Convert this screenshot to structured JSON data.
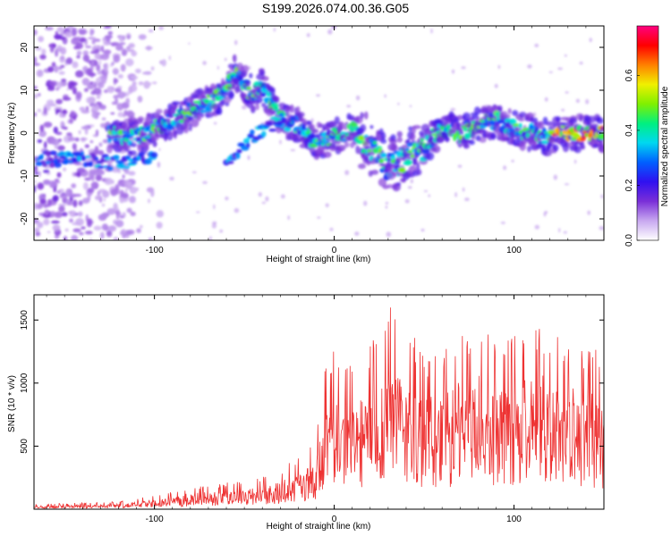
{
  "title": "S199.2026.074.00.36.G05",
  "chart_data": [
    {
      "type": "heatmap",
      "name": "spectrogram",
      "xlabel": "Height of straight line (km)",
      "ylabel": "Frequency (Hz)",
      "xlim": [
        -167,
        150
      ],
      "ylim": [
        -25,
        25
      ],
      "xticks": [
        -100,
        0,
        100
      ],
      "yticks": [
        -20,
        -10,
        0,
        10,
        20
      ],
      "colorbar": {
        "label": "Normalized spectral amplitude",
        "range": [
          0,
          0.78
        ],
        "ticks": [
          "0.0",
          "0.2",
          "0.4",
          "0.6"
        ],
        "tick_values": [
          0.0,
          0.2,
          0.4,
          0.6
        ],
        "colors": [
          "#ffffff",
          "#c8a8f0",
          "#7a2fd8",
          "#3010f0",
          "#0060ff",
          "#00d8f0",
          "#00f080",
          "#80f000",
          "#f0f000",
          "#ff8000",
          "#ff0000",
          "#ff0080"
        ]
      },
      "ridge": {
        "x": [
          -125,
          -110,
          -100,
          -90,
          -80,
          -70,
          -60,
          -55,
          -45,
          -40,
          -35,
          -30,
          -20,
          -10,
          0,
          10,
          20,
          30,
          40,
          50,
          60,
          70,
          80,
          90,
          100,
          110,
          120,
          130,
          140,
          150
        ],
        "f": [
          0,
          -1,
          1,
          3,
          5,
          7,
          10,
          14,
          9,
          11,
          7,
          3,
          2,
          -2,
          -1,
          1,
          -3,
          -8,
          -6,
          -3,
          1,
          0,
          2,
          3,
          1,
          0,
          -1,
          0,
          0,
          0
        ]
      }
    },
    {
      "type": "line",
      "name": "snr",
      "xlabel": "Height of straight line (km)",
      "ylabel": "SNR (10 * v/v)",
      "xlim": [
        -167,
        150
      ],
      "ylim": [
        0,
        1700
      ],
      "xticks": [
        -100,
        0,
        100
      ],
      "yticks": [
        500,
        1000,
        1500
      ],
      "color": "#ee3333",
      "envelope": {
        "x": [
          -167,
          -120,
          -100,
          -80,
          -60,
          -40,
          -30,
          -20,
          -10,
          -5,
          0,
          10,
          20,
          30,
          40,
          50,
          60,
          70,
          80,
          90,
          100,
          110,
          120,
          130,
          140,
          150
        ],
        "max": [
          40,
          60,
          110,
          170,
          210,
          260,
          320,
          420,
          600,
          1150,
          1280,
          1250,
          1300,
          1650,
          1500,
          1200,
          1300,
          1400,
          1500,
          1300,
          1400,
          1450,
          1450,
          1350,
          1250,
          1300
        ]
      }
    }
  ]
}
